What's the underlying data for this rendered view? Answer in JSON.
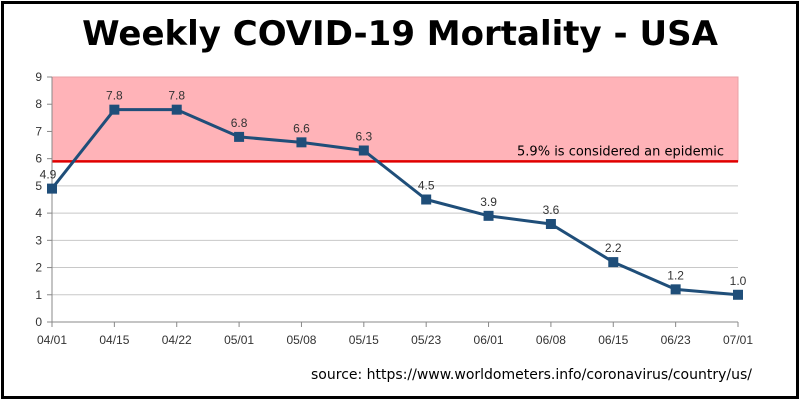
{
  "title": "Weekly COVID-19 Mortality - USA",
  "source": "source: https://www.worldometers.info/coronavirus/country/us/",
  "colors": {
    "series": "#1f4e79",
    "epidemic_band": "#ffb3b8",
    "threshold_line": "#e00000",
    "grid": "#c8c8c8"
  },
  "chart_data": {
    "type": "line",
    "categories": [
      "04/01",
      "04/15",
      "04/22",
      "05/01",
      "05/08",
      "05/15",
      "05/23",
      "06/01",
      "06/08",
      "06/15",
      "06/23",
      "07/01"
    ],
    "values": [
      4.9,
      7.8,
      7.8,
      6.8,
      6.6,
      6.3,
      4.5,
      3.9,
      3.6,
      2.2,
      1.2,
      1.0
    ],
    "data_labels": [
      "4.9",
      "7.8",
      "7.8",
      "6.8",
      "6.6",
      "6.3",
      "4.5",
      "3.9",
      "3.6",
      "2.2",
      "1.2",
      "1.0"
    ],
    "yticks": [
      "0",
      "1",
      "2",
      "3",
      "4",
      "5",
      "6",
      "7",
      "8",
      "9"
    ],
    "ylim": [
      0,
      9
    ],
    "grid": true,
    "marker": "square",
    "threshold": {
      "value": 5.9,
      "band_to": 9,
      "label": "5.9% is considered an epidemic"
    }
  }
}
